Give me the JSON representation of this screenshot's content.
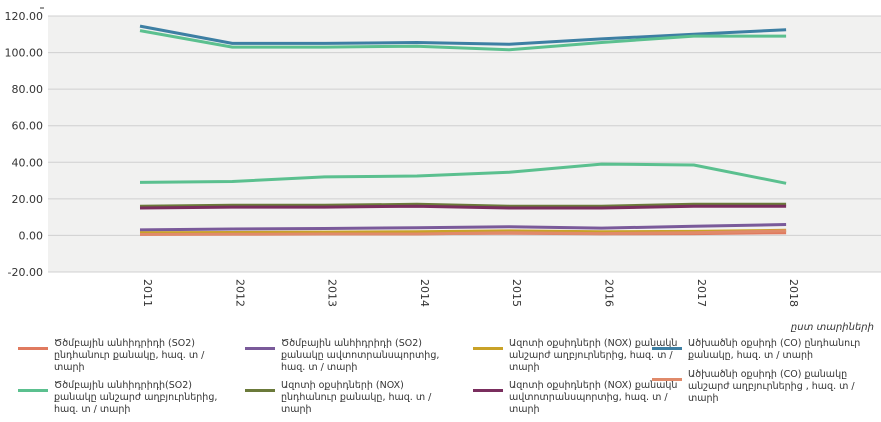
{
  "chart_data": {
    "type": "line",
    "categories": [
      "2011",
      "2012",
      "2013",
      "2014",
      "2015",
      "2016",
      "2017",
      "2018"
    ],
    "xlabel": "ըստ տարիների",
    "ylim": [
      -20,
      120
    ],
    "yticks": [
      "-20.00",
      "0.00",
      "20.00",
      "40.00",
      "60.00",
      "80.00",
      "100.00",
      "120.00"
    ],
    "yticks_values": [
      -20,
      0,
      20,
      40,
      60,
      80,
      100,
      120
    ],
    "grid": true,
    "legend_position": "bottom",
    "series": [
      {
        "name": "Ծծմբային անհիդրիդի (SO2) ընդհանուր քանակը, հազ. տ / տարի",
        "color": "#e07a5f",
        "values": [
          0.8,
          0.9,
          1.0,
          1.0,
          1.2,
          0.9,
          1.0,
          1.5
        ]
      },
      {
        "name": "Ծծմբային անհիդրիդի (SO2) քանակը ավտոտրանսպորտից, հազ. տ / տարի",
        "color": "#7a5a9a",
        "values": [
          3.0,
          3.5,
          3.8,
          4.2,
          4.8,
          4.0,
          5.0,
          6.0
        ]
      },
      {
        "name": "Ազոտի օքսիդների (NOX) քանակն անշարժ աղբյուրներից, հազ. տ / տարի",
        "color": "#c9a227",
        "values": [
          1.5,
          1.6,
          1.8,
          2.0,
          2.5,
          2.0,
          2.2,
          2.8
        ]
      },
      {
        "name": "Ածխածնի օքսիդի (CO) ընդհանուր քանակը, հազ. տ / տարի",
        "color": "#3d7fa3",
        "values": [
          114.5,
          105.0,
          105.0,
          105.5,
          104.5,
          107.5,
          110.0,
          112.5
        ]
      },
      {
        "name": "Ծծմբային անհիդրիդի(SO2) քանակը անշարժ աղբյուրներից, հազ. տ / տարի",
        "color": "#5bc08f",
        "values": [
          112.0,
          103.0,
          103.0,
          103.5,
          101.5,
          105.5,
          109.0,
          109.0
        ]
      },
      {
        "name": "Ազոտի օքսիդների (NOX) ընդհանուր քանակը, հազ. տ / տարի",
        "color": "#6b7a3a",
        "values": [
          16.0,
          16.5,
          16.5,
          17.0,
          16.0,
          16.0,
          17.0,
          17.0
        ]
      },
      {
        "name": "Ազոտի օքսիդների (NOX) քանակն ավտոտրանսպորտից, հազ. տ / տարի",
        "color": "#7a2e5e",
        "values": [
          15.0,
          15.5,
          15.5,
          16.0,
          15.0,
          15.0,
          16.0,
          16.0
        ]
      },
      {
        "name": "Ածխածնի օքսիդի (CO) քանակը անշարժ աղբյուրներից , հազ. տ / տարի",
        "color": "#e08a6a",
        "values": [
          0.5,
          0.6,
          0.8,
          0.8,
          1.5,
          1.0,
          1.5,
          2.5
        ]
      },
      {
        "name": "",
        "color": "#5bc08f",
        "values": [
          29.0,
          29.5,
          32.0,
          32.5,
          34.5,
          39.0,
          38.5,
          28.5
        ]
      }
    ],
    "legend": [
      {
        "series": 0
      },
      {
        "series": 1
      },
      {
        "series": 2
      },
      {
        "series": 3
      },
      {
        "series": 4
      },
      {
        "series": 5
      },
      {
        "series": 6
      },
      {
        "series": 7
      }
    ]
  }
}
